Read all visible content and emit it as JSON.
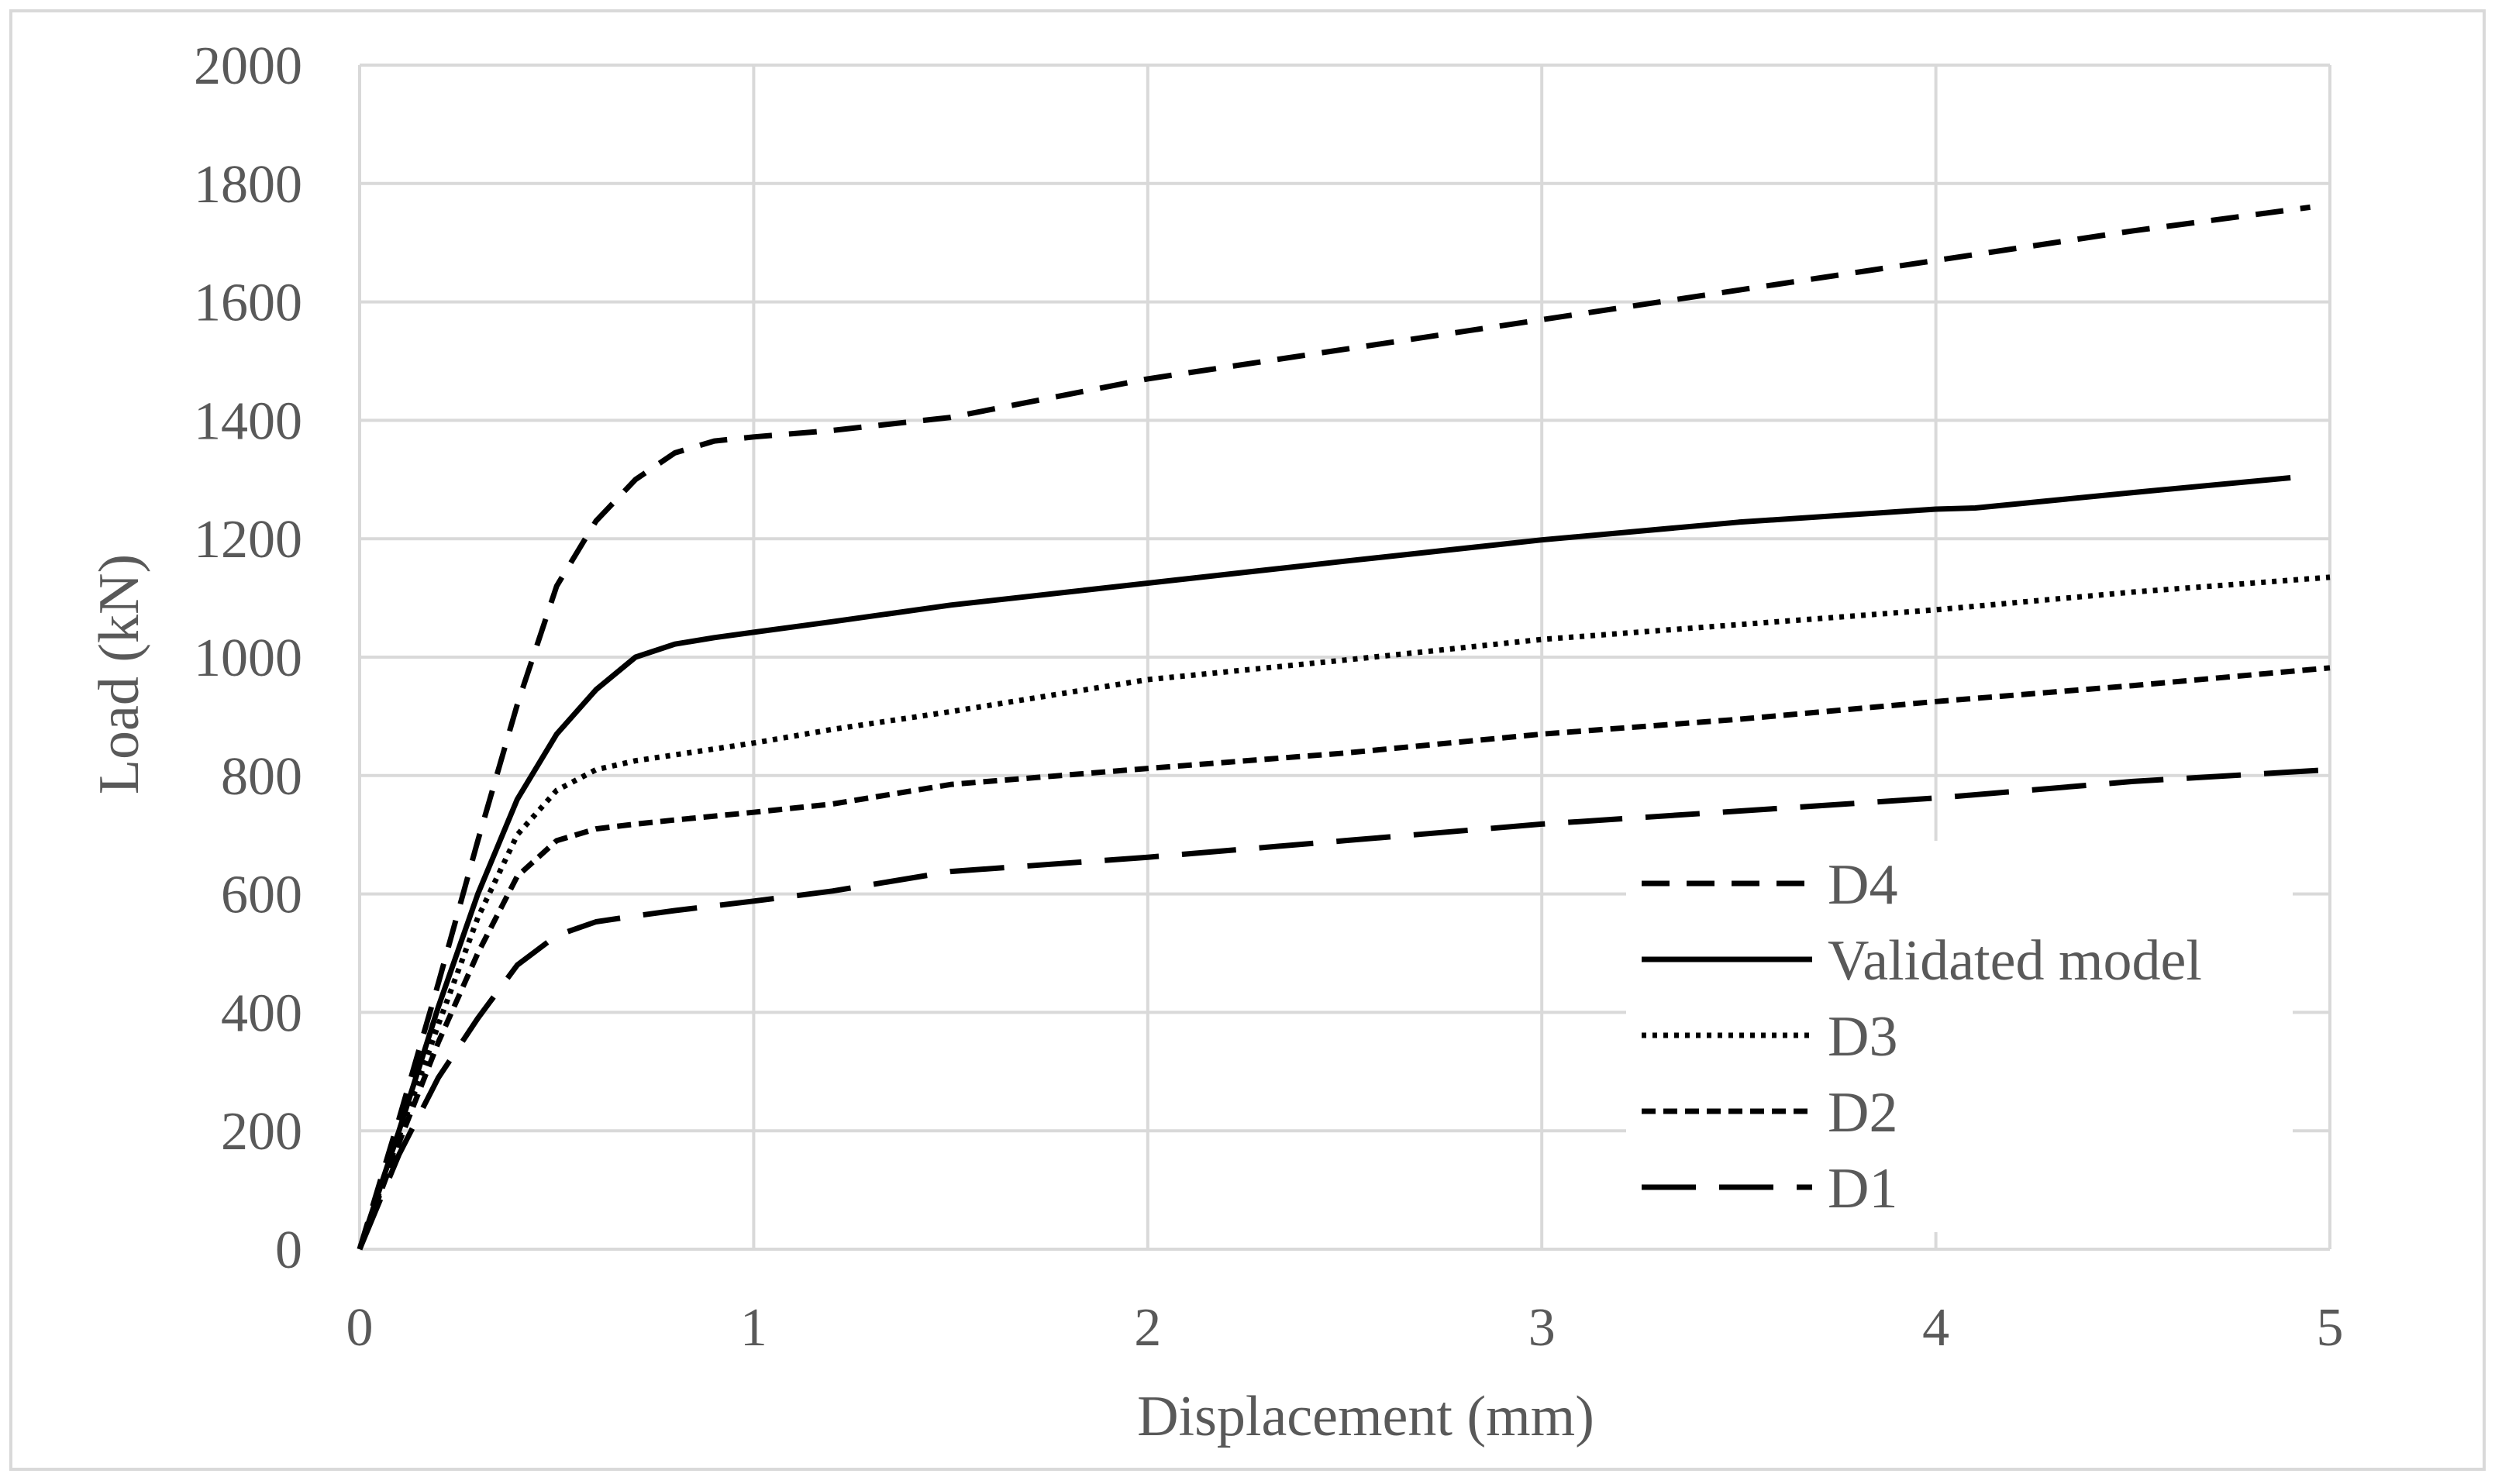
{
  "chart_data": {
    "type": "line",
    "xlabel": "Displacement (mm)",
    "ylabel": "Load (kN)",
    "xlim": [
      0,
      5
    ],
    "ylim": [
      0,
      2000
    ],
    "xticks": [
      "0",
      "1",
      "2",
      "3",
      "4",
      "5"
    ],
    "yticks": [
      "0",
      "200",
      "400",
      "600",
      "800",
      "1000",
      "1200",
      "1400",
      "1600",
      "1800",
      "2000"
    ],
    "grid": "vertical and horizontal major gridlines",
    "legend_position": "bottom-right",
    "series": [
      {
        "name": "D4",
        "style": "dash",
        "color": "#000000",
        "x": [
          0,
          0.1,
          0.2,
          0.3,
          0.4,
          0.5,
          0.6,
          0.7,
          0.8,
          0.9,
          1.0,
          1.2,
          1.5,
          2.0,
          2.5,
          3.0,
          3.5,
          4.0,
          4.5,
          4.95
        ],
        "y": [
          0,
          220,
          450,
          690,
          920,
          1120,
          1230,
          1300,
          1345,
          1365,
          1372,
          1383,
          1405,
          1470,
          1520,
          1570,
          1620,
          1670,
          1720,
          1760
        ]
      },
      {
        "name": "Validated model",
        "style": "solid",
        "color": "#000000",
        "x": [
          0,
          0.1,
          0.2,
          0.3,
          0.4,
          0.5,
          0.6,
          0.7,
          0.8,
          0.9,
          1.0,
          1.2,
          1.5,
          2.0,
          2.5,
          3.0,
          3.5,
          4.0,
          4.1,
          4.5,
          4.9
        ],
        "y": [
          0,
          200,
          410,
          600,
          760,
          870,
          945,
          1000,
          1022,
          1033,
          1042,
          1060,
          1088,
          1125,
          1162,
          1198,
          1228,
          1250,
          1252,
          1278,
          1303
        ]
      },
      {
        "name": "D3",
        "style": "dot",
        "color": "#000000",
        "x": [
          0,
          0.1,
          0.2,
          0.3,
          0.4,
          0.5,
          0.6,
          0.7,
          0.8,
          1.0,
          1.2,
          1.5,
          2.0,
          2.5,
          3.0,
          3.5,
          4.0,
          4.5,
          5.0
        ],
        "y": [
          0,
          190,
          380,
          560,
          700,
          775,
          810,
          825,
          835,
          855,
          878,
          908,
          962,
          995,
          1030,
          1055,
          1080,
          1110,
          1135
        ]
      },
      {
        "name": "D2",
        "style": "short-dash",
        "color": "#000000",
        "x": [
          0,
          0.1,
          0.2,
          0.3,
          0.4,
          0.5,
          0.6,
          0.7,
          0.8,
          1.0,
          1.2,
          1.5,
          2.0,
          2.5,
          3.0,
          3.5,
          4.0,
          4.5,
          5.0
        ],
        "y": [
          0,
          180,
          350,
          500,
          630,
          690,
          710,
          718,
          725,
          738,
          752,
          785,
          812,
          838,
          870,
          895,
          925,
          952,
          982
        ]
      },
      {
        "name": "D1",
        "style": "long-dash",
        "color": "#000000",
        "x": [
          0,
          0.1,
          0.2,
          0.3,
          0.4,
          0.5,
          0.6,
          0.7,
          0.8,
          1.0,
          1.2,
          1.5,
          2.0,
          2.5,
          3.0,
          3.5,
          4.0,
          4.5,
          5.0
        ],
        "y": [
          0,
          160,
          290,
          390,
          480,
          530,
          553,
          563,
          572,
          588,
          605,
          638,
          662,
          690,
          718,
          740,
          762,
          790,
          810
        ]
      }
    ]
  }
}
